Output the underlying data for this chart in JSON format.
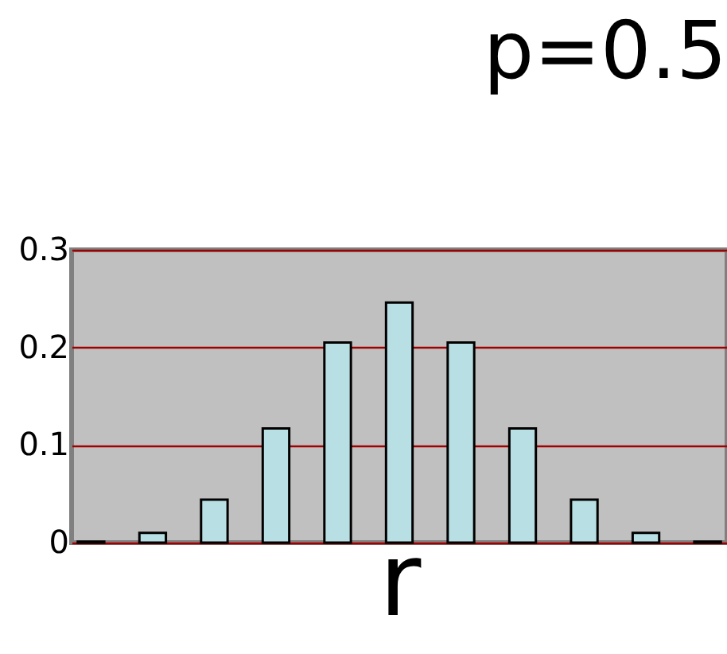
{
  "chart_data": {
    "type": "bar",
    "title": "p=0.5",
    "xlabel": "r",
    "categories": [
      null,
      null,
      null,
      null,
      null,
      null,
      null,
      null,
      null,
      null,
      null
    ],
    "values": [
      0.001,
      0.01,
      0.044,
      0.117,
      0.205,
      0.246,
      0.205,
      0.117,
      0.044,
      0.01,
      0.001
    ],
    "color": "#b8e0e4",
    "ylim": [
      0,
      0.3
    ],
    "yticks": [
      0,
      0.1,
      0.2,
      0.3
    ],
    "grid": "y",
    "tick_labels": "y"
  }
}
